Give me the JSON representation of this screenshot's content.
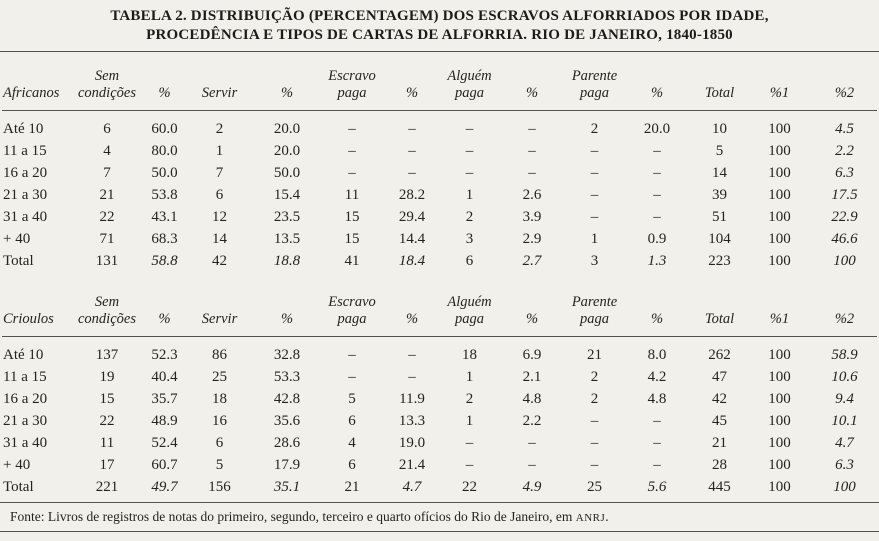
{
  "title": {
    "line1": "TABELA 2. DISTRIBUIÇÃO (PERCENTAGEM) DOS ESCRAVOS ALFORRIADOS POR IDADE,",
    "line2": "PROCEDÊNCIA E TIPOS DE CARTAS DE ALFORRIA. RIO DE JANEIRO, 1840-1850"
  },
  "tables": [
    {
      "group_label": "Africanos",
      "headers": [
        "Sem\ncondições",
        "%",
        "Servir",
        "%",
        "Escravo\npaga",
        "%",
        "Alguém\npaga",
        "%",
        "Parente\npaga",
        "%",
        "Total",
        "%1",
        "%2"
      ],
      "rows": [
        {
          "label": "Até 10",
          "total": false,
          "cells": [
            "6",
            "60.0",
            "2",
            "20.0",
            "–",
            "–",
            "–",
            "–",
            "2",
            "20.0",
            "10",
            "100",
            "4.5"
          ]
        },
        {
          "label": "11 a 15",
          "total": false,
          "cells": [
            "4",
            "80.0",
            "1",
            "20.0",
            "–",
            "–",
            "–",
            "–",
            "–",
            "–",
            "5",
            "100",
            "2.2"
          ]
        },
        {
          "label": "16 a 20",
          "total": false,
          "cells": [
            "7",
            "50.0",
            "7",
            "50.0",
            "–",
            "–",
            "–",
            "–",
            "–",
            "–",
            "14",
            "100",
            "6.3"
          ]
        },
        {
          "label": "21 a 30",
          "total": false,
          "cells": [
            "21",
            "53.8",
            "6",
            "15.4",
            "11",
            "28.2",
            "1",
            "2.6",
            "–",
            "–",
            "39",
            "100",
            "17.5"
          ]
        },
        {
          "label": "31 a 40",
          "total": false,
          "cells": [
            "22",
            "43.1",
            "12",
            "23.5",
            "15",
            "29.4",
            "2",
            "3.9",
            "–",
            "–",
            "51",
            "100",
            "22.9"
          ]
        },
        {
          "label": "+ 40",
          "total": false,
          "cells": [
            "71",
            "68.3",
            "14",
            "13.5",
            "15",
            "14.4",
            "3",
            "2.9",
            "1",
            "0.9",
            "104",
            "100",
            "46.6"
          ]
        },
        {
          "label": "Total",
          "total": true,
          "cells": [
            "131",
            "58.8",
            "42",
            "18.8",
            "41",
            "18.4",
            "6",
            "2.7",
            "3",
            "1.3",
            "223",
            "100",
            "100"
          ]
        }
      ]
    },
    {
      "group_label": "Crioulos",
      "headers": [
        "Sem\ncondições",
        "%",
        "Servir",
        "%",
        "Escravo\npaga",
        "%",
        "Alguém\npaga",
        "%",
        "Parente\npaga",
        "%",
        "Total",
        "%1",
        "%2"
      ],
      "rows": [
        {
          "label": "Até 10",
          "total": false,
          "cells": [
            "137",
            "52.3",
            "86",
            "32.8",
            "–",
            "–",
            "18",
            "6.9",
            "21",
            "8.0",
            "262",
            "100",
            "58.9"
          ]
        },
        {
          "label": "11 a 15",
          "total": false,
          "cells": [
            "19",
            "40.4",
            "25",
            "53.3",
            "–",
            "–",
            "1",
            "2.1",
            "2",
            "4.2",
            "47",
            "100",
            "10.6"
          ]
        },
        {
          "label": "16 a 20",
          "total": false,
          "cells": [
            "15",
            "35.7",
            "18",
            "42.8",
            "5",
            "11.9",
            "2",
            "4.8",
            "2",
            "4.8",
            "42",
            "100",
            "9.4"
          ]
        },
        {
          "label": "21 a 30",
          "total": false,
          "cells": [
            "22",
            "48.9",
            "16",
            "35.6",
            "6",
            "13.3",
            "1",
            "2.2",
            "–",
            "–",
            "45",
            "100",
            "10.1"
          ]
        },
        {
          "label": "31 a 40",
          "total": false,
          "cells": [
            "11",
            "52.4",
            "6",
            "28.6",
            "4",
            "19.0",
            "–",
            "–",
            "–",
            "–",
            "21",
            "100",
            "4.7"
          ]
        },
        {
          "label": "+ 40",
          "total": false,
          "cells": [
            "17",
            "60.7",
            "5",
            "17.9",
            "6",
            "21.4",
            "–",
            "–",
            "–",
            "–",
            "28",
            "100",
            "6.3"
          ]
        },
        {
          "label": "Total",
          "total": true,
          "cells": [
            "221",
            "49.7",
            "156",
            "35.1",
            "21",
            "4.7",
            "22",
            "4.9",
            "25",
            "5.6",
            "445",
            "100",
            "100"
          ]
        }
      ]
    }
  ],
  "fonte": {
    "prefix": "Fonte: Livros de registros de notas do primeiro, segundo, terceiro e quarto ofícios do Rio de Janeiro, em ",
    "abbr": "ANRJ",
    "suffix": "."
  }
}
